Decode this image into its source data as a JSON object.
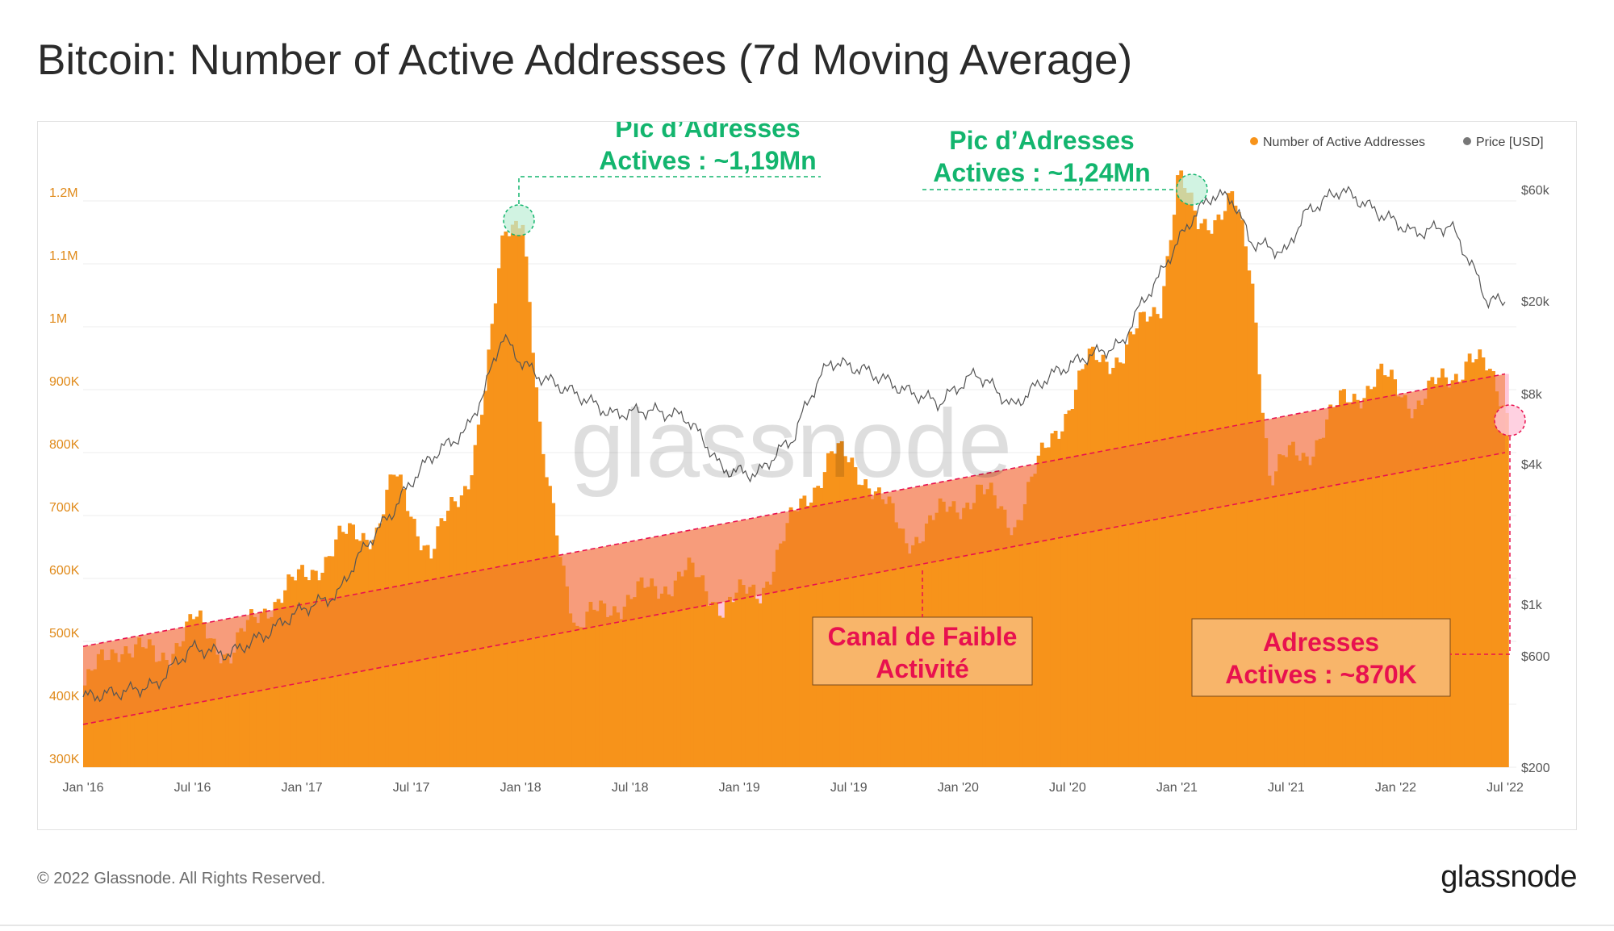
{
  "page": {
    "title": "Bitcoin: Number of Active Addresses (7d Moving Average)",
    "copyright": "© 2022 Glassnode. All Rights Reserved.",
    "logo": "glassnode",
    "watermark": "glassnode"
  },
  "colors": {
    "addresses": "#f7931a",
    "channel_fill": "#f07a2e",
    "price_line": "#555555",
    "channel_line": "#e8114f",
    "pink_fill": "#ffc6d9",
    "annotation_green": "#13b56e",
    "annotation_red": "#e8114f",
    "box_fill": "#f8b56a"
  },
  "chart_data": {
    "type": "area",
    "legend": {
      "position": "top-right",
      "entries": [
        {
          "label": "Number of Active Addresses",
          "color": "#f7931a"
        },
        {
          "label": "Price [USD]",
          "color": "#777777"
        }
      ]
    },
    "x_ticks": [
      "Jan '16",
      "Jul '16",
      "Jan '17",
      "Jul '17",
      "Jan '18",
      "Jul '18",
      "Jan '19",
      "Jul '19",
      "Jan '20",
      "Jul '20",
      "Jan '21",
      "Jul '21",
      "Jan '22",
      "Jul '22"
    ],
    "left_axis": {
      "ticks": [
        "1.2M",
        "1.1M",
        "1M",
        "900K",
        "800K",
        "700K",
        "600K",
        "500K",
        "400K",
        "300K"
      ],
      "range": [
        300000,
        1200000
      ]
    },
    "right_axis": {
      "scale": "log",
      "ticks": [
        "$60k",
        "$20k",
        "$8k",
        "$4k",
        "$1k",
        "$600",
        "$200"
      ],
      "range": [
        200,
        60000
      ]
    },
    "series": [
      {
        "name": "Number of Active Addresses",
        "x": [
          "2016-01",
          "2016-03",
          "2016-05",
          "2016-07",
          "2016-09",
          "2016-11",
          "2017-01",
          "2017-03",
          "2017-05",
          "2017-06",
          "2017-08",
          "2017-10",
          "2017-11",
          "2017-12",
          "2018-01",
          "2018-02",
          "2018-04",
          "2018-06",
          "2018-08",
          "2018-10",
          "2018-12",
          "2019-02",
          "2019-04",
          "2019-06",
          "2019-08",
          "2019-10",
          "2019-12",
          "2020-02",
          "2020-04",
          "2020-06",
          "2020-08",
          "2020-10",
          "2020-12",
          "2021-01",
          "2021-02",
          "2021-03",
          "2021-04",
          "2021-05",
          "2021-06",
          "2021-07",
          "2021-08",
          "2021-10",
          "2021-12",
          "2022-02",
          "2022-04",
          "2022-05",
          "2022-06",
          "2022-07"
        ],
        "values": [
          430000,
          500000,
          470000,
          530000,
          480000,
          560000,
          600000,
          660000,
          680000,
          760000,
          640000,
          760000,
          900000,
          1150000,
          1190000,
          800000,
          520000,
          560000,
          580000,
          610000,
          560000,
          580000,
          700000,
          800000,
          760000,
          660000,
          700000,
          740000,
          690000,
          820000,
          940000,
          960000,
          1040000,
          1240000,
          1160000,
          1180000,
          1200000,
          1080000,
          760000,
          790000,
          800000,
          880000,
          920000,
          880000,
          920000,
          960000,
          920000,
          870000
        ]
      },
      {
        "name": "Price [USD]",
        "x": [
          "2016-01",
          "2016-03",
          "2016-05",
          "2016-07",
          "2016-09",
          "2016-11",
          "2017-01",
          "2017-03",
          "2017-05",
          "2017-06",
          "2017-08",
          "2017-10",
          "2017-11",
          "2017-12",
          "2018-01",
          "2018-02",
          "2018-04",
          "2018-06",
          "2018-08",
          "2018-10",
          "2018-12",
          "2019-02",
          "2019-04",
          "2019-06",
          "2019-08",
          "2019-10",
          "2019-12",
          "2020-02",
          "2020-04",
          "2020-06",
          "2020-08",
          "2020-10",
          "2020-12",
          "2021-01",
          "2021-02",
          "2021-03",
          "2021-04",
          "2021-05",
          "2021-06",
          "2021-07",
          "2021-08",
          "2021-10",
          "2021-12",
          "2022-02",
          "2022-04",
          "2022-05",
          "2022-06",
          "2022-07"
        ],
        "values": [
          400,
          420,
          450,
          650,
          610,
          740,
          950,
          1100,
          2000,
          2500,
          4200,
          5500,
          8000,
          14000,
          11000,
          9500,
          8000,
          6500,
          6800,
          6400,
          3800,
          3600,
          5200,
          11000,
          10000,
          8300,
          7300,
          9800,
          7000,
          9500,
          11500,
          13000,
          25000,
          35000,
          47000,
          57000,
          55000,
          36000,
          34000,
          32000,
          47000,
          60000,
          48000,
          39000,
          42000,
          30000,
          20000,
          20000
        ]
      }
    ],
    "annotations": [
      {
        "text": [
          "Pic d’Adresses",
          "Actives : ~1,19Mn"
        ],
        "x": "2017-12",
        "value": 1190000,
        "color": "green"
      },
      {
        "text": [
          "Pic d’Adresses",
          "Actives : ~1,24Mn"
        ],
        "x": "2021-01",
        "value": 1240000,
        "color": "green"
      },
      {
        "text": [
          "Canal de Faible",
          "Activité"
        ],
        "color": "red"
      },
      {
        "text": [
          "Adresses",
          "Actives : ~870K"
        ],
        "x": "2022-07",
        "value": 870000,
        "color": "red"
      }
    ],
    "channel": {
      "upper": [
        [
          "2016-01",
          492000
        ],
        [
          "2022-07",
          925000
        ]
      ],
      "lower": [
        [
          "2016-01",
          368000
        ],
        [
          "2022-07",
          800000
        ]
      ]
    }
  }
}
